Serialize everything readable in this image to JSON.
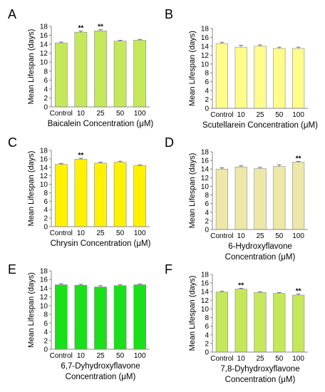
{
  "figure": {
    "tick_labels": [
      "0",
      "2",
      "4",
      "6",
      "8",
      "10",
      "12",
      "14",
      "16",
      "18"
    ]
  },
  "chart_data": [
    {
      "panel": "A",
      "type": "bar",
      "categories": [
        "Control",
        "10",
        "25",
        "50",
        "100"
      ],
      "values": [
        14.3,
        16.7,
        17.0,
        14.7,
        14.9
      ],
      "errors": [
        0.2,
        0.25,
        0.25,
        0.2,
        0.2
      ],
      "significance": [
        "",
        "**",
        "**",
        "",
        ""
      ],
      "ylim": [
        0,
        18
      ],
      "yticks": [
        0,
        2,
        4,
        6,
        8,
        10,
        12,
        14,
        16,
        18
      ],
      "ylabel": "Mean Lifespan (days)",
      "xlabel": [
        "Baicalein Concentration (μM)"
      ],
      "color": "#c4e85a",
      "grid": false
    },
    {
      "panel": "B",
      "type": "bar",
      "categories": [
        "Control",
        "10",
        "25",
        "50",
        "100"
      ],
      "values": [
        14.6,
        13.8,
        14.0,
        13.5,
        13.5
      ],
      "errors": [
        0.3,
        0.4,
        0.3,
        0.3,
        0.3
      ],
      "significance": [
        "",
        "",
        "",
        "",
        ""
      ],
      "ylim": [
        0,
        18
      ],
      "yticks": [
        0,
        2,
        4,
        6,
        8,
        10,
        12,
        14,
        16,
        18
      ],
      "ylabel": "Mean Lifespan (days)",
      "xlabel": [
        "Scutellarein Concentration (μM)"
      ],
      "color": "#fffc8a",
      "grid": false
    },
    {
      "panel": "C",
      "type": "bar",
      "categories": [
        "Control",
        "10",
        "25",
        "50",
        "100"
      ],
      "values": [
        14.7,
        15.9,
        15.0,
        15.2,
        14.4
      ],
      "errors": [
        0.2,
        0.25,
        0.2,
        0.25,
        0.2
      ],
      "significance": [
        "",
        "**",
        "",
        "",
        ""
      ],
      "ylim": [
        0,
        18
      ],
      "yticks": [
        0,
        2,
        4,
        6,
        8,
        10,
        12,
        14,
        16,
        18
      ],
      "ylabel": "Mean Lifespan (days)",
      "xlabel": [
        "Chrysin Concentration (μM)"
      ],
      "color": "#fff200",
      "grid": false
    },
    {
      "panel": "D",
      "type": "bar",
      "categories": [
        "Control",
        "10",
        "25",
        "50",
        "100"
      ],
      "values": [
        14.0,
        14.5,
        14.1,
        14.6,
        15.6
      ],
      "errors": [
        0.3,
        0.25,
        0.3,
        0.4,
        0.2
      ],
      "significance": [
        "",
        "",
        "",
        "",
        "**"
      ],
      "ylim": [
        0,
        18
      ],
      "yticks": [
        0,
        2,
        4,
        6,
        8,
        10,
        12,
        14,
        16,
        18
      ],
      "ylabel": "Mean Lifespan (days)",
      "xlabel": [
        "6-Hydroxyflavone",
        "Concentration (μM)"
      ],
      "color": "#eee8a8",
      "grid": false
    },
    {
      "panel": "E",
      "type": "bar",
      "categories": [
        "Control",
        "10",
        "25",
        "50",
        "100"
      ],
      "values": [
        14.8,
        14.7,
        14.3,
        14.6,
        14.8
      ],
      "errors": [
        0.25,
        0.2,
        0.3,
        0.25,
        0.2
      ],
      "significance": [
        "",
        "",
        "",
        "",
        ""
      ],
      "ylim": [
        0,
        18
      ],
      "yticks": [
        0,
        2,
        4,
        6,
        8,
        10,
        12,
        14,
        16,
        18
      ],
      "ylabel": "Mean Lifespan (days)",
      "xlabel": [
        "6,7-Dyhydroxyflavone",
        "Concentration (μM)"
      ],
      "color": "#19e019",
      "grid": false
    },
    {
      "panel": "F",
      "type": "bar",
      "categories": [
        "Control",
        "10",
        "25",
        "50",
        "100"
      ],
      "values": [
        13.9,
        14.6,
        13.8,
        13.6,
        13.2
      ],
      "errors": [
        0.2,
        0.2,
        0.2,
        0.2,
        0.25
      ],
      "significance": [
        "",
        "**",
        "",
        "",
        "**"
      ],
      "ylim": [
        0,
        18
      ],
      "yticks": [
        0,
        2,
        4,
        6,
        8,
        10,
        12,
        14,
        16,
        18
      ],
      "ylabel": "Mean Lifespan (days)",
      "xlabel": [
        "7,8-Dyhydroxyflavone",
        "Concentration (μM)"
      ],
      "color": "#c4e85a",
      "grid": false
    }
  ]
}
